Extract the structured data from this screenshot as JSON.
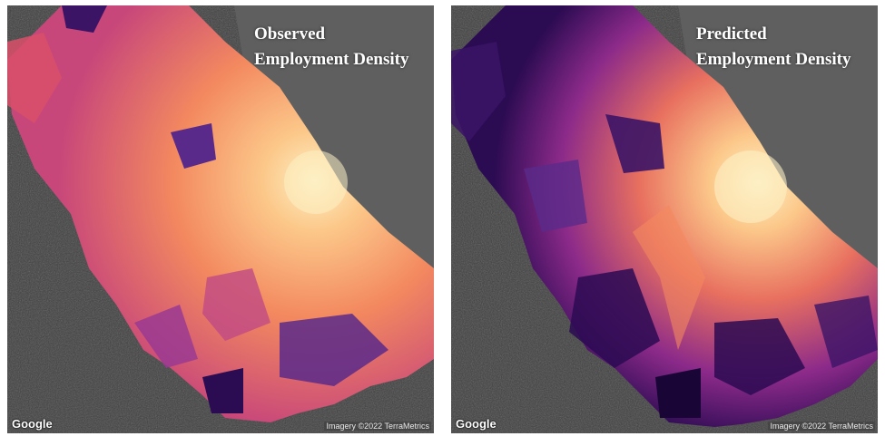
{
  "panels": [
    {
      "id": "observed",
      "title_line1": "Observed",
      "title_line2": "Employment Density",
      "attribution": "Google",
      "imagery_credit": "Imagery ©2022 TerraMetrics"
    },
    {
      "id": "predicted",
      "title_line1": "Predicted",
      "title_line2": "Employment Density",
      "attribution": "Google",
      "imagery_credit": "Imagery ©2022 TerraMetrics"
    }
  ],
  "colors": {
    "water": "#5f5f5f",
    "land": "#3d3d3d",
    "density_low": "#2b0b52",
    "density_mid": "#b3367e",
    "density_high": "#fcc88a",
    "density_peak": "#fdf0c4"
  }
}
